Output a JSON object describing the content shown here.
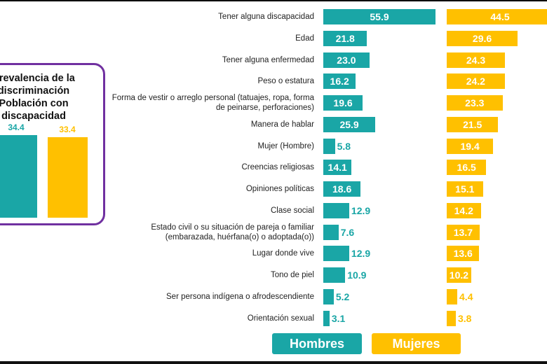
{
  "colors": {
    "hombres": "#1aa6a6",
    "mujeres": "#ffc000",
    "inset_border": "#7030a0"
  },
  "inset": {
    "title_lines": [
      "Prevalencia de la",
      "discriminación",
      "Población con",
      "discapacidad"
    ],
    "hombres_label": "34.4",
    "mujeres_label": "33.4"
  },
  "chart_data": {
    "type": "bar",
    "orientation": "horizontal",
    "categories": [
      [
        "Tener alguna discapacidad"
      ],
      [
        "Edad"
      ],
      [
        "Tener alguna enfermedad"
      ],
      [
        "Peso o estatura"
      ],
      [
        "Forma de vestir o arreglo personal (tatuajes, ropa, forma",
        "de peinarse, perforaciones)"
      ],
      [
        "Manera de hablar"
      ],
      [
        "Mujer (Hombre)"
      ],
      [
        "Creencias religiosas"
      ],
      [
        "Opiniones políticas"
      ],
      [
        "Clase social"
      ],
      [
        "Estado civil o su situación de pareja o familiar",
        "(embarazada, huérfana(o) o adoptada(o))"
      ],
      [
        "Lugar donde vive"
      ],
      [
        "Tono de piel"
      ],
      [
        "Ser persona indígena o afrodescendiente"
      ],
      [
        "Orientación sexual"
      ]
    ],
    "series": [
      {
        "name": "Hombres",
        "values": [
          55.9,
          21.8,
          23.0,
          16.2,
          19.6,
          25.9,
          5.8,
          14.1,
          18.6,
          12.9,
          7.6,
          12.9,
          10.9,
          5.2,
          3.1
        ]
      },
      {
        "name": "Mujeres",
        "values": [
          44.5,
          29.6,
          24.3,
          24.2,
          23.3,
          21.5,
          19.4,
          16.5,
          15.1,
          14.2,
          13.7,
          13.6,
          10.2,
          4.4,
          3.8
        ]
      }
    ],
    "inset_values": {
      "Hombres": 34.4,
      "Mujeres": 33.4
    },
    "legend": [
      "Hombres",
      "Mujeres"
    ]
  }
}
